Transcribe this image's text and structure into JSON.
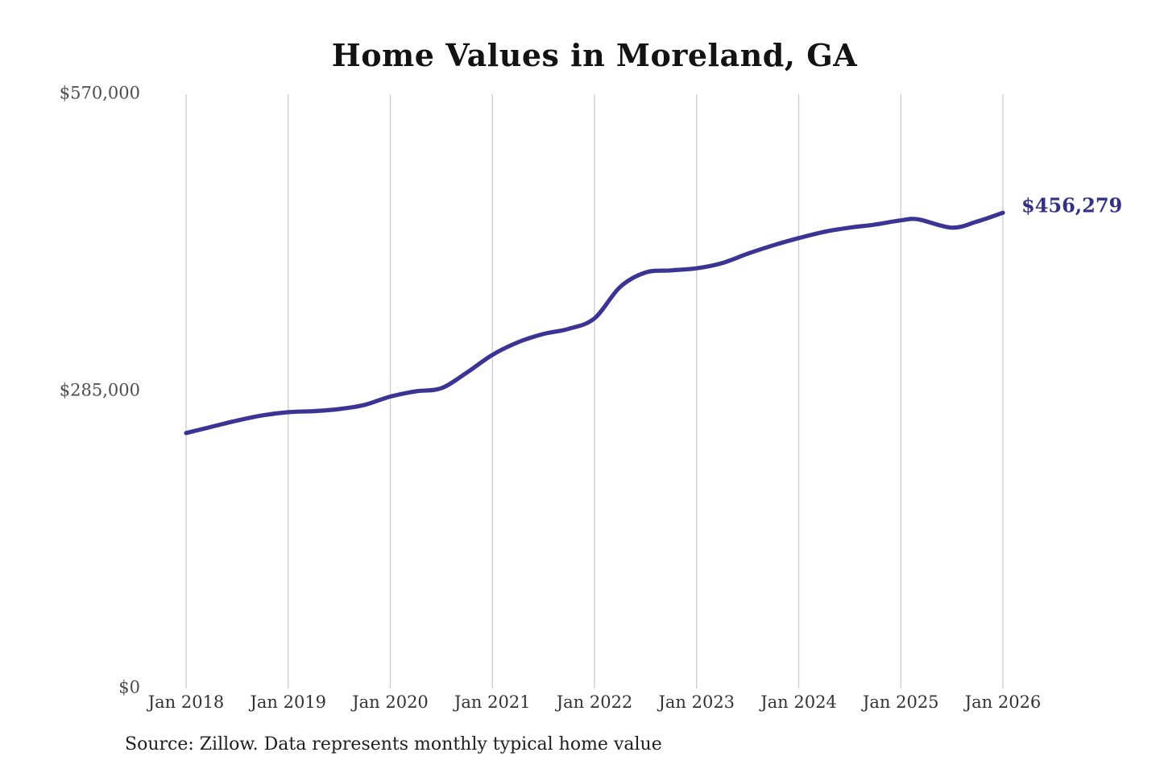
{
  "title": "Home Values in Moreland, GA",
  "source_note": "Source: Zillow. Data represents monthly typical home value",
  "colors": {
    "line": "#3b3494",
    "annotation_text": "#343084",
    "gridline": "#cccccc",
    "x_tick_text": "#333333",
    "y_tick_text": "#4d4d4d",
    "title_text": "#131313",
    "background": "#ffffff"
  },
  "chart_data": {
    "type": "line",
    "title": "Home Values in Moreland, GA",
    "xlabel": "",
    "ylabel": "",
    "ylim": [
      0,
      570000
    ],
    "xlim": [
      2018,
      2026
    ],
    "grid": "vertical-only",
    "legend": "none",
    "y_ticks": [
      {
        "label": "$570,000",
        "value": 570000
      },
      {
        "label": "$285,000",
        "value": 285000
      },
      {
        "label": "$0",
        "value": 0
      }
    ],
    "x_ticks": [
      {
        "label": "Jan 2018",
        "t": 2018
      },
      {
        "label": "Jan 2019",
        "t": 2019
      },
      {
        "label": "Jan 2020",
        "t": 2020
      },
      {
        "label": "Jan 2021",
        "t": 2021
      },
      {
        "label": "Jan 2022",
        "t": 2022
      },
      {
        "label": "Jan 2023",
        "t": 2023
      },
      {
        "label": "Jan 2024",
        "t": 2024
      },
      {
        "label": "Jan 2025",
        "t": 2025
      },
      {
        "label": "Jan 2026",
        "t": 2026
      }
    ],
    "series": [
      {
        "name": "Monthly typical home value",
        "points": [
          {
            "label": "Jan 2018",
            "t": 2018.0,
            "value": 245000
          },
          {
            "label": "Apr 2018",
            "t": 2018.25,
            "value": 251000
          },
          {
            "label": "Jul 2018",
            "t": 2018.5,
            "value": 257000
          },
          {
            "label": "Oct 2018",
            "t": 2018.75,
            "value": 262000
          },
          {
            "label": "Jan 2019",
            "t": 2019.0,
            "value": 265000
          },
          {
            "label": "Apr 2019",
            "t": 2019.25,
            "value": 266000
          },
          {
            "label": "Jul 2019",
            "t": 2019.5,
            "value": 268000
          },
          {
            "label": "Oct 2019",
            "t": 2019.75,
            "value": 272000
          },
          {
            "label": "Jan 2020",
            "t": 2020.0,
            "value": 280000
          },
          {
            "label": "Apr 2020",
            "t": 2020.25,
            "value": 285000
          },
          {
            "label": "Jul 2020",
            "t": 2020.5,
            "value": 288000
          },
          {
            "label": "Oct 2020",
            "t": 2020.75,
            "value": 303000
          },
          {
            "label": "Jan 2021",
            "t": 2021.0,
            "value": 320000
          },
          {
            "label": "Apr 2021",
            "t": 2021.25,
            "value": 332000
          },
          {
            "label": "Jul 2021",
            "t": 2021.5,
            "value": 340000
          },
          {
            "label": "Oct 2021",
            "t": 2021.75,
            "value": 345000
          },
          {
            "label": "Jan 2022",
            "t": 2022.0,
            "value": 355000
          },
          {
            "label": "Apr 2022",
            "t": 2022.25,
            "value": 385000
          },
          {
            "label": "Jul 2022",
            "t": 2022.5,
            "value": 399000
          },
          {
            "label": "Oct 2022",
            "t": 2022.75,
            "value": 401000
          },
          {
            "label": "Jan 2023",
            "t": 2023.0,
            "value": 403000
          },
          {
            "label": "Apr 2023",
            "t": 2023.25,
            "value": 408000
          },
          {
            "label": "Jul 2023",
            "t": 2023.5,
            "value": 417000
          },
          {
            "label": "Oct 2023",
            "t": 2023.75,
            "value": 425000
          },
          {
            "label": "Jan 2024",
            "t": 2024.0,
            "value": 432000
          },
          {
            "label": "Apr 2024",
            "t": 2024.25,
            "value": 438000
          },
          {
            "label": "Jul 2024",
            "t": 2024.5,
            "value": 442000
          },
          {
            "label": "Oct 2024",
            "t": 2024.75,
            "value": 445000
          },
          {
            "label": "Jan 2025",
            "t": 2025.0,
            "value": 449000
          },
          {
            "label": "Mar 2025",
            "t": 2025.17,
            "value": 450000
          },
          {
            "label": "Jul 2025",
            "t": 2025.5,
            "value": 442000
          },
          {
            "label": "Oct 2025",
            "t": 2025.75,
            "value": 448000
          },
          {
            "label": "Jan 2026",
            "t": 2026.0,
            "value": 456279
          }
        ]
      }
    ],
    "annotation": {
      "text": "$456,279",
      "t": 2026.0,
      "value": 456279
    }
  }
}
